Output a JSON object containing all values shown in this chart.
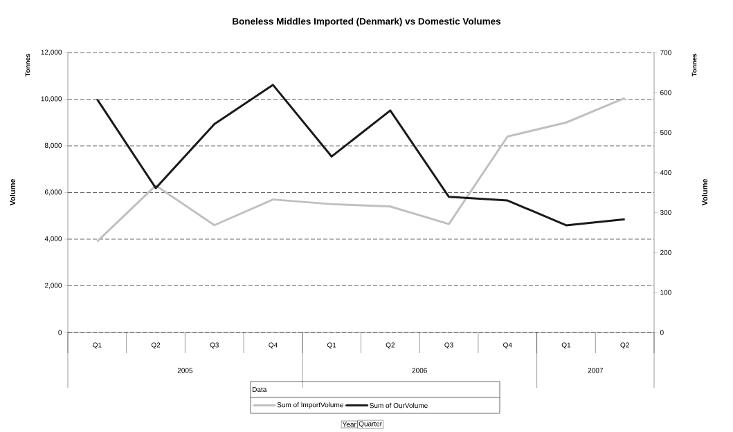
{
  "chart_data": {
    "type": "line",
    "title": "Boneless Middles Imported (Denmark) vs Domestic Volumes",
    "categories": [
      "Q1",
      "Q2",
      "Q3",
      "Q4",
      "Q1",
      "Q2",
      "Q3",
      "Q4",
      "Q1",
      "Q2"
    ],
    "series": [
      {
        "name": "Sum of ImportVolume",
        "color": "#c0c0c0",
        "values": [
          3900,
          6300,
          4600,
          5700,
          5500,
          5400,
          4650,
          8400,
          9000,
          10050
        ]
      },
      {
        "name": "Sum of OurVolume",
        "color": "#1a1a1a",
        "axis": "y2",
        "values": [
          583,
          361,
          521,
          619,
          440,
          555,
          339,
          330,
          268,
          283
        ]
      }
    ],
    "ylabel": "Volume",
    "y2label": "Volume",
    "legend_title": "Data",
    "ylim": [
      0,
      12000
    ],
    "yticks": [
      0,
      {
        "value": 2000,
        "label": "2,000"
      },
      {
        "value": 4000,
        "label": "4,000"
      },
      {
        "value": 6000,
        "label": "6,000"
      },
      {
        "value": 8000,
        "label": "8,000"
      },
      {
        "value": 10000,
        "label": "10,000"
      },
      {
        "value": 12000,
        "label": "12,000"
      }
    ],
    "y2lim": [
      0,
      700
    ],
    "y2ticks": [
      0,
      100,
      200,
      300,
      400,
      500,
      600,
      700
    ],
    "annotations": [
      "Tonnes",
      "Tonnes",
      "2005",
      "2006",
      "2007",
      "Year",
      "Quarter"
    ],
    "grid": "y",
    "legend": "bottom",
    "marker": "none",
    "line_style": "solid"
  }
}
